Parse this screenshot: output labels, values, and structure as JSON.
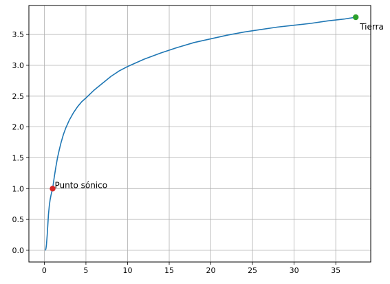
{
  "chart_data": {
    "type": "line",
    "title": "",
    "xlabel": "",
    "ylabel": "",
    "xlim": [
      -1.85,
      39.2
    ],
    "ylim": [
      -0.19,
      3.97
    ],
    "x_ticks": [
      0,
      5,
      10,
      15,
      20,
      25,
      30,
      35
    ],
    "y_ticks": [
      0.0,
      0.5,
      1.0,
      1.5,
      2.0,
      2.5,
      3.0,
      3.5
    ],
    "x_tick_labels": [
      "0",
      "5",
      "10",
      "15",
      "20",
      "25",
      "30",
      "35"
    ],
    "y_tick_labels": [
      "0.0",
      "0.5",
      "1.0",
      "1.5",
      "2.0",
      "2.5",
      "3.0",
      "3.5"
    ],
    "grid": true,
    "series": [
      {
        "color": "#1f77b4",
        "x": [
          0.1,
          0.15,
          0.2,
          0.25,
          0.3,
          0.35,
          0.4,
          0.45,
          0.5,
          0.6,
          0.7,
          0.8,
          0.9,
          1.0,
          1.2,
          1.4,
          1.6,
          1.8,
          2.0,
          2.3,
          2.6,
          3.0,
          3.5,
          4.0,
          4.5,
          5.0,
          6.0,
          7.0,
          8.0,
          9.0,
          10.0,
          12.0,
          14.0,
          16.0,
          18.0,
          20.0,
          22.0,
          24.0,
          26.0,
          28.0,
          30.0,
          32.0,
          34.0,
          36.0,
          37.4
        ],
        "y": [
          0.0,
          0.005,
          0.03,
          0.08,
          0.16,
          0.25,
          0.36,
          0.47,
          0.58,
          0.72,
          0.82,
          0.89,
          0.95,
          1.0,
          1.19,
          1.36,
          1.51,
          1.63,
          1.74,
          1.88,
          1.99,
          2.11,
          2.23,
          2.33,
          2.41,
          2.47,
          2.6,
          2.71,
          2.82,
          2.91,
          2.98,
          3.1,
          3.2,
          3.29,
          3.37,
          3.43,
          3.49,
          3.54,
          3.58,
          3.62,
          3.65,
          3.68,
          3.72,
          3.75,
          3.78
        ]
      }
    ],
    "points": [
      {
        "x": 1.0,
        "y": 1.0,
        "color": "#d62728"
      },
      {
        "x": 37.4,
        "y": 3.78,
        "color": "#2ca02c"
      }
    ],
    "annotations": [
      {
        "text": "Punto sónico",
        "x": 1.0,
        "y": 1.0
      },
      {
        "text": "Tierra",
        "x": 37.4,
        "y": 3.78
      }
    ]
  }
}
